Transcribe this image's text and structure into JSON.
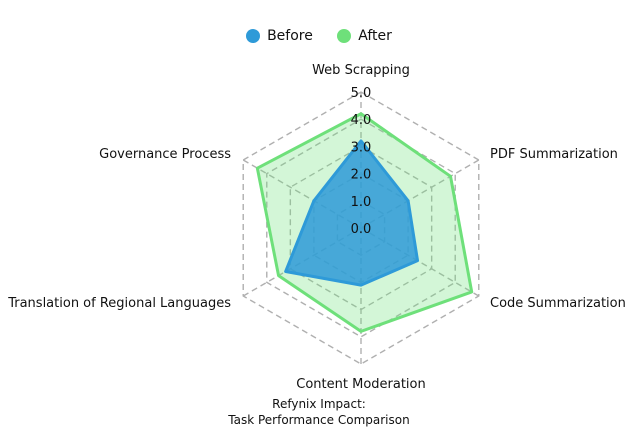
{
  "chart_data": {
    "type": "radar",
    "title": "Refynix Impact:",
    "subtitle": "Task Performance Comparison",
    "categories": [
      "Web Scrapping",
      "PDF Summarization",
      "Code Summarization",
      "Content Moderation",
      "Translation of Regional Languages",
      "Governance Process"
    ],
    "series": [
      {
        "name": "Before",
        "color": "#2e9ad8",
        "values": [
          3.2,
          2.0,
          2.4,
          2.1,
          3.2,
          2.0
        ]
      },
      {
        "name": "After",
        "color": "#6ee07a",
        "values": [
          4.2,
          3.8,
          4.7,
          3.8,
          3.5,
          4.4
        ]
      }
    ],
    "r_ticks": [
      "0.0",
      "1.0",
      "2.0",
      "3.0",
      "4.0",
      "5.0"
    ],
    "rlim": [
      0,
      5
    ],
    "grid": true,
    "legend_position": "top-center"
  }
}
